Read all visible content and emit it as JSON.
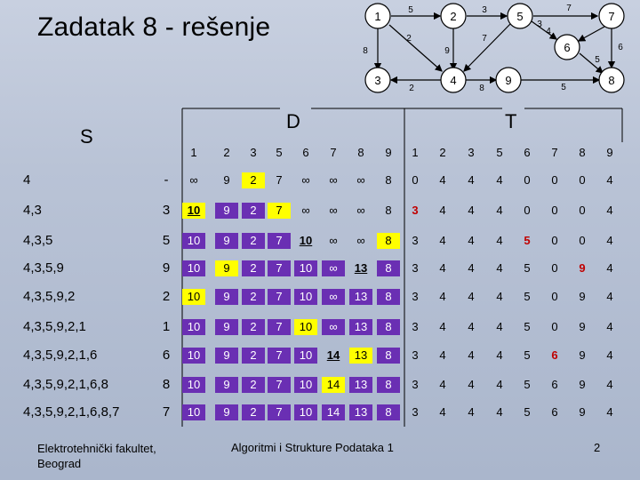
{
  "title": "Zadatak 8 - rešenje",
  "graph": {
    "nodes": [
      "1",
      "2",
      "5",
      "7",
      "3",
      "4",
      "9",
      "8",
      "6"
    ],
    "edge_weights": [
      "5",
      "3",
      "7",
      "8",
      "2",
      "9",
      "7",
      "3",
      "4",
      "6",
      "5",
      "2",
      "8",
      "5"
    ]
  },
  "table": {
    "s_header": "S",
    "d_header": "D",
    "t_header": "T",
    "columns": [
      "1",
      "2",
      "3",
      "5",
      "6",
      "7",
      "8",
      "9"
    ],
    "rows": [
      {
        "s": "4",
        "d": [
          "-",
          "∞",
          "9",
          "2",
          "7",
          "∞",
          "∞",
          "∞",
          "8"
        ],
        "t": [
          "0",
          "4",
          "4",
          "4",
          "0",
          "0",
          "0",
          "4"
        ]
      },
      {
        "s": "4,3",
        "d": [
          "3",
          "10",
          "9",
          "2",
          "7",
          "∞",
          "∞",
          "∞",
          "8"
        ],
        "t": [
          "3",
          "4",
          "4",
          "4",
          "0",
          "0",
          "0",
          "4"
        ]
      },
      {
        "s": "4,3,5",
        "d": [
          "5",
          "10",
          "9",
          "2",
          "7",
          "10",
          "∞",
          "∞",
          "8"
        ],
        "t": [
          "3",
          "4",
          "4",
          "4",
          "5",
          "0",
          "0",
          "4"
        ]
      },
      {
        "s": "4,3,5,9",
        "d": [
          "9",
          "10",
          "9",
          "2",
          "7",
          "10",
          "∞",
          "13",
          "8"
        ],
        "t": [
          "3",
          "4",
          "4",
          "4",
          "5",
          "0",
          "9",
          "4"
        ]
      },
      {
        "s": "4,3,5,9,2",
        "d": [
          "2",
          "10",
          "9",
          "2",
          "7",
          "10",
          "∞",
          "13",
          "8"
        ],
        "t": [
          "3",
          "4",
          "4",
          "4",
          "5",
          "0",
          "9",
          "4"
        ]
      },
      {
        "s": "4,3,5,9,2,1",
        "d": [
          "1",
          "10",
          "9",
          "2",
          "7",
          "10",
          "∞",
          "13",
          "8"
        ],
        "t": [
          "3",
          "4",
          "4",
          "4",
          "5",
          "0",
          "9",
          "4"
        ]
      },
      {
        "s": "4,3,5,9,2,1,6",
        "d": [
          "6",
          "10",
          "9",
          "2",
          "7",
          "10",
          "14",
          "13",
          "8"
        ],
        "t": [
          "3",
          "4",
          "4",
          "4",
          "5",
          "6",
          "9",
          "4"
        ]
      },
      {
        "s": "4,3,5,9,2,1,6,8",
        "d": [
          "8",
          "10",
          "9",
          "2",
          "7",
          "10",
          "14",
          "13",
          "8"
        ],
        "t": [
          "3",
          "4",
          "4",
          "4",
          "5",
          "6",
          "9",
          "4"
        ]
      },
      {
        "s": "4,3,5,9,2,1,6,8,7",
        "d": [
          "7",
          "10",
          "9",
          "2",
          "7",
          "10",
          "14",
          "13",
          "8"
        ],
        "t": [
          "3",
          "4",
          "4",
          "4",
          "5",
          "6",
          "9",
          "4"
        ]
      }
    ]
  },
  "footer": {
    "left_line1": "Elektrotehnički fakultet,",
    "left_line2": "Beograd",
    "middle": "Algoritmi i Strukture Podataka 1",
    "page": "2"
  }
}
